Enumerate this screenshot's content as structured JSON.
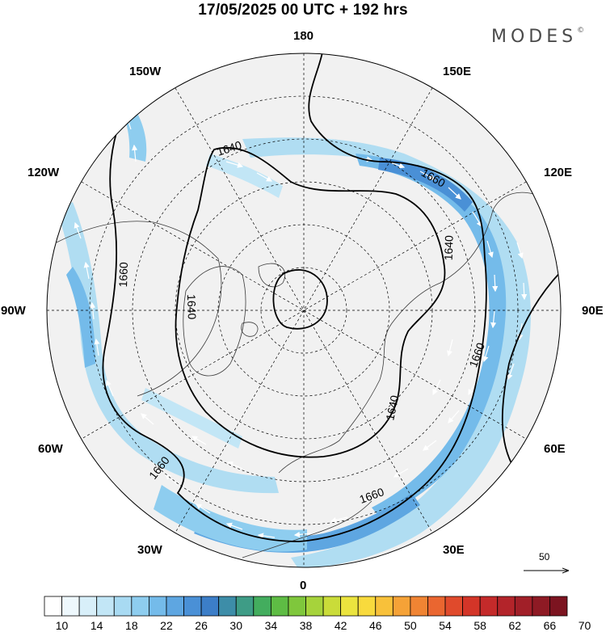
{
  "header": {
    "title": "17/05/2025  00 UTC  + 192 hrs",
    "brand": "MODES"
  },
  "longitude_labels": [
    {
      "id": "180",
      "text": "180"
    },
    {
      "id": "150E",
      "text": "150E"
    },
    {
      "id": "120E",
      "text": "120E"
    },
    {
      "id": "90E",
      "text": "90E"
    },
    {
      "id": "60E",
      "text": "60E"
    },
    {
      "id": "30E",
      "text": "30E"
    },
    {
      "id": "0",
      "text": "0"
    },
    {
      "id": "30W",
      "text": "30W"
    },
    {
      "id": "60W",
      "text": "60W"
    },
    {
      "id": "90W",
      "text": "90W"
    },
    {
      "id": "120W",
      "text": "120W"
    },
    {
      "id": "150W",
      "text": "150W"
    }
  ],
  "contour_labels": [
    "1640",
    "1660",
    "1640",
    "1660",
    "1640",
    "1660",
    "1640",
    "1660",
    "1660",
    "1640"
  ],
  "reference_vector": {
    "value": "50"
  },
  "colorbar": {
    "ticks": [
      "10",
      "14",
      "18",
      "22",
      "26",
      "30",
      "34",
      "38",
      "42",
      "46",
      "50",
      "54",
      "58",
      "62",
      "66",
      "70"
    ],
    "colors": [
      "#ffffff",
      "#eef8fd",
      "#d8eff9",
      "#c2e6f6",
      "#a8daf2",
      "#8ecdef",
      "#74bbea",
      "#5ea6e1",
      "#4a90d6",
      "#3c7ec8",
      "#3d8da8",
      "#3e9c86",
      "#43ad5e",
      "#5ebc44",
      "#7fc73c",
      "#a6d33b",
      "#cadc39",
      "#ebe43e",
      "#f8da3d",
      "#f8c13a",
      "#f5a237",
      "#f08433",
      "#ea6630",
      "#e04a2c",
      "#d33528",
      "#c42a2a",
      "#b3242a",
      "#a11f28",
      "#8e1a24",
      "#7c1420"
    ]
  }
}
